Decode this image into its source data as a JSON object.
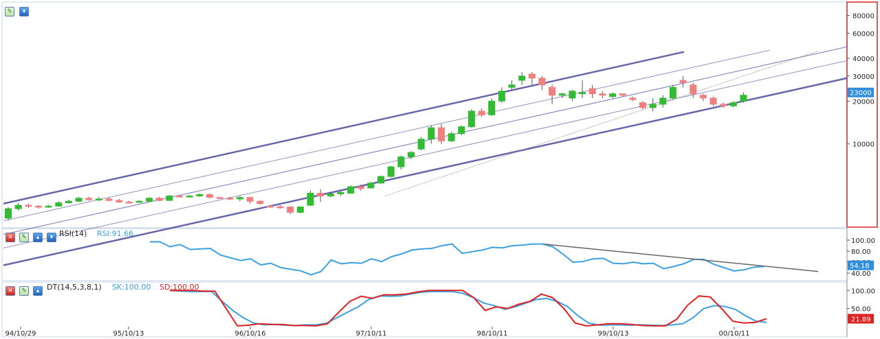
{
  "colors": {
    "up": "#33bb33",
    "down": "#f08080",
    "rsi": "#3aa0e0",
    "sk": "#3aa0e0",
    "sd": "#e02020",
    "channel": "#4a4a9a",
    "price_tag": "#2f8fdc",
    "sd_tag": "#dd2222",
    "rsi_tag": "#2f8fdc"
  },
  "x_labels": [
    "94/10/29",
    "95/10/13",
    "96/10/16",
    "97/10/11",
    "98/10/11",
    "99/10/13",
    "00/10/11"
  ],
  "price_axis": {
    "ticks": [
      "80000",
      "60000",
      "40000",
      "30000",
      "20000",
      "10000"
    ],
    "current": "23000"
  },
  "rsi_panel": {
    "name": "RSI(14)",
    "value_label": "RSI:91.66",
    "ticks": [
      "100.00",
      "80.00",
      "60.00",
      "40.00"
    ],
    "current": "54.18"
  },
  "dt_panel": {
    "name": "DT(14,5,3,8,1)",
    "sk_label": "SK:100.00",
    "sd_label": "SD:100.00",
    "ticks": [
      "100.00",
      "50.00"
    ],
    "current": "21.89"
  },
  "chart_data": [
    {
      "type": "candlestick",
      "yscale": "log",
      "ylim": [
        3000,
        90000
      ],
      "x_labels": [
        "94/10/29",
        "95/10/13",
        "96/10/16",
        "97/10/11",
        "98/10/11",
        "99/10/13",
        "00/10/11"
      ],
      "y_ticks": [
        80000,
        60000,
        40000,
        30000,
        20000,
        10000
      ],
      "current": 23000,
      "candles": [
        [
          3000,
          3500,
          2900,
          3600
        ],
        [
          3500,
          3700,
          3400,
          3850
        ],
        [
          3700,
          3650,
          3550,
          3800
        ],
        [
          3650,
          3600,
          3500,
          3700
        ],
        [
          3600,
          3650,
          3550,
          3720
        ],
        [
          3650,
          3850,
          3620,
          3950
        ],
        [
          3850,
          3950,
          3800,
          4050
        ],
        [
          3950,
          4150,
          3900,
          4250
        ],
        [
          4150,
          4050,
          3980,
          4250
        ],
        [
          4050,
          4100,
          3950,
          4250
        ],
        [
          4100,
          4000,
          3950,
          4180
        ],
        [
          4000,
          3900,
          3850,
          4100
        ],
        [
          3900,
          3880,
          3800,
          3980
        ],
        [
          3880,
          3950,
          3850,
          4020
        ],
        [
          3950,
          4150,
          3900,
          4220
        ],
        [
          4150,
          4000,
          3950,
          4250
        ],
        [
          4000,
          4300,
          3980,
          4380
        ],
        [
          4300,
          4250,
          4200,
          4380
        ],
        [
          4250,
          4300,
          4200,
          4380
        ],
        [
          4300,
          4400,
          4250,
          4480
        ],
        [
          4400,
          4200,
          4150,
          4480
        ],
        [
          4200,
          4150,
          4100,
          4250
        ],
        [
          4150,
          4100,
          4050,
          4250
        ],
        [
          4100,
          4200,
          3950,
          4300
        ],
        [
          4200,
          3950,
          3800,
          4250
        ],
        [
          3950,
          3800,
          3750,
          4000
        ],
        [
          3650,
          3600,
          3550,
          3700
        ],
        [
          3620,
          3550,
          3500,
          3700
        ],
        [
          3600,
          3300,
          3200,
          3650
        ],
        [
          3300,
          3600,
          3250,
          3650
        ],
        [
          3700,
          4500,
          3650,
          4700
        ],
        [
          4500,
          4300,
          3900,
          4800
        ],
        [
          4300,
          4450,
          4200,
          4600
        ],
        [
          4450,
          4550,
          4300,
          4700
        ],
        [
          4500,
          5000,
          4450,
          5100
        ],
        [
          5000,
          4850,
          4700,
          5150
        ],
        [
          4900,
          5300,
          4850,
          5400
        ],
        [
          5300,
          5900,
          5250,
          6000
        ],
        [
          5900,
          6900,
          5800,
          7000
        ],
        [
          6900,
          8100,
          6600,
          8300
        ],
        [
          8100,
          8700,
          7800,
          8900
        ],
        [
          9200,
          10800,
          9000,
          11200
        ],
        [
          10800,
          13000,
          10000,
          13500
        ],
        [
          13000,
          10500,
          10000,
          13800
        ],
        [
          10500,
          11800,
          10300,
          12200
        ],
        [
          11800,
          13200,
          11500,
          13500
        ],
        [
          13200,
          17000,
          13000,
          17500
        ],
        [
          17000,
          16000,
          15500,
          17800
        ],
        [
          16000,
          20000,
          15800,
          21000
        ],
        [
          20000,
          23500,
          19500,
          25000
        ],
        [
          25000,
          26000,
          24000,
          28000
        ],
        [
          28000,
          30000,
          26000,
          32000
        ],
        [
          31000,
          29000,
          26000,
          32000
        ],
        [
          29000,
          26000,
          24000,
          30000
        ],
        [
          25000,
          22000,
          19000,
          26000
        ],
        [
          22000,
          22500,
          21000,
          23000
        ],
        [
          21000,
          23500,
          20000,
          24000
        ],
        [
          22500,
          23000,
          21000,
          28000
        ],
        [
          24500,
          22500,
          21000,
          26000
        ],
        [
          22500,
          22000,
          21000,
          23500
        ],
        [
          21500,
          22500,
          21000,
          23000
        ],
        [
          22500,
          22000,
          21500,
          22700
        ],
        [
          21000,
          20500,
          20000,
          21500
        ],
        [
          19500,
          18000,
          17500,
          20000
        ],
        [
          18000,
          19000,
          17000,
          21000
        ],
        [
          19000,
          21000,
          18000,
          22000
        ],
        [
          21000,
          25000,
          20500,
          26000
        ],
        [
          28000,
          27000,
          25000,
          30000
        ],
        [
          26000,
          22500,
          21000,
          27000
        ],
        [
          22000,
          21000,
          20000,
          22500
        ],
        [
          21000,
          19000,
          18500,
          21500
        ],
        [
          19000,
          18500,
          18000,
          19500
        ],
        [
          18500,
          19500,
          18000,
          20000
        ],
        [
          20000,
          22000,
          19500,
          23000
        ]
      ],
      "channel": {
        "upper_x": [
          0,
          1205
        ],
        "upper_y": [
          3800,
          80000
        ],
        "lower_y": [
          1400,
          29000
        ]
      }
    },
    {
      "type": "line",
      "name": "RSI(14)",
      "ylim": [
        30,
        110
      ],
      "y_ticks": [
        100,
        80,
        60,
        40
      ],
      "current": 54.18,
      "values": [
        97,
        97,
        88,
        92,
        83,
        84,
        85,
        73,
        68,
        63,
        66,
        55,
        58,
        50,
        47,
        44,
        37,
        43,
        64,
        57,
        59,
        58,
        66,
        61,
        70,
        75,
        82,
        84,
        85,
        90,
        93,
        76,
        79,
        82,
        87,
        86,
        90,
        91,
        93,
        93,
        88,
        75,
        60,
        61,
        66,
        67,
        58,
        57,
        60,
        57,
        58,
        48,
        52,
        57,
        65,
        65,
        56,
        50,
        44,
        46,
        51,
        52
      ]
    },
    {
      "type": "line",
      "name": "DT(14,5,3,8,1)",
      "ylim": [
        0,
        110
      ],
      "y_ticks": [
        100,
        50
      ],
      "current": 21.89,
      "series": [
        {
          "name": "SK",
          "values": [
            100,
            98,
            97,
            97,
            97,
            70,
            45,
            25,
            10,
            5,
            6,
            4,
            3,
            5,
            5,
            10,
            25,
            40,
            55,
            75,
            85,
            84,
            85,
            90,
            95,
            97,
            97,
            97,
            92,
            80,
            65,
            58,
            48,
            55,
            65,
            75,
            78,
            70,
            55,
            30,
            10,
            4,
            5,
            5,
            4,
            5,
            4,
            3,
            5,
            8,
            25,
            50,
            58,
            56,
            48,
            30,
            15,
            12
          ]
        },
        {
          "name": "SD",
          "values": [
            100,
            100,
            100,
            98,
            98,
            50,
            2,
            4,
            8,
            6,
            6,
            3,
            3,
            2,
            8,
            40,
            70,
            84,
            78,
            88,
            88,
            90,
            96,
            100,
            100,
            100,
            100,
            80,
            45,
            55,
            50,
            62,
            70,
            90,
            80,
            50,
            10,
            2,
            5,
            8,
            8,
            6,
            3,
            2,
            2,
            20,
            60,
            85,
            82,
            50,
            15,
            10,
            12,
            22
          ]
        }
      ]
    }
  ]
}
